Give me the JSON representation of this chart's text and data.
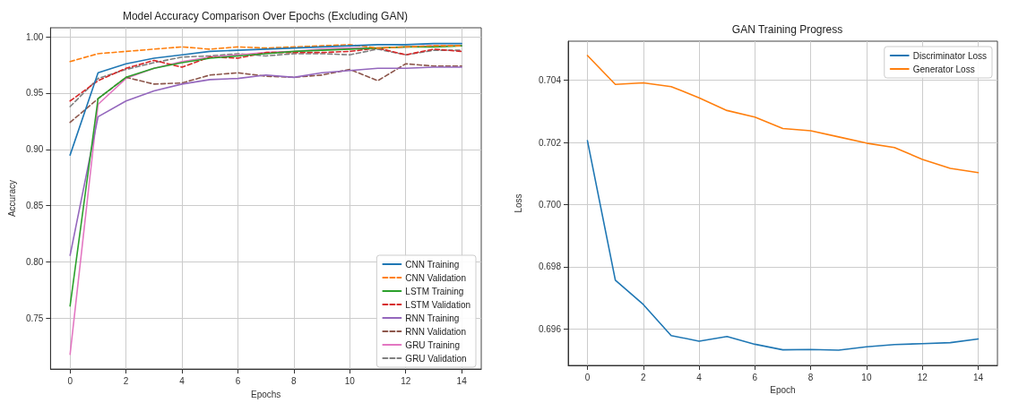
{
  "chart_data": [
    {
      "type": "line",
      "title": "Model Accuracy Comparison Over Epochs (Excluding GAN)",
      "xlabel": "Epochs",
      "ylabel": "Accuracy",
      "x": [
        0,
        1,
        2,
        3,
        4,
        5,
        6,
        7,
        8,
        9,
        10,
        11,
        12,
        13,
        14
      ],
      "xlim": [
        -0.7,
        14.7
      ],
      "xticks": [
        0,
        2,
        4,
        6,
        8,
        10,
        12,
        14
      ],
      "ylim": [
        0.705,
        1.008
      ],
      "yticks": [
        {
          "value": 0.75,
          "label": "0.75"
        },
        {
          "value": 0.8,
          "label": "0.80"
        },
        {
          "value": 0.85,
          "label": "0.85"
        },
        {
          "value": 0.9,
          "label": "0.90"
        },
        {
          "value": 0.95,
          "label": "0.95"
        },
        {
          "value": 1.0,
          "label": "1.00"
        }
      ],
      "grid": true,
      "legend": "bottom right",
      "marker": "none",
      "series": [
        {
          "name": "CNN Training",
          "color": "#1f77b4",
          "line_style": "solid",
          "values": [
            0.895,
            0.968,
            0.976,
            0.981,
            0.984,
            0.987,
            0.988,
            0.989,
            0.99,
            0.991,
            0.992,
            0.993,
            0.993,
            0.994,
            0.994
          ]
        },
        {
          "name": "CNN Validation",
          "color": "#ff7f0e",
          "line_style": "dashed",
          "values": [
            0.978,
            0.985,
            0.987,
            0.989,
            0.991,
            0.989,
            0.991,
            0.99,
            0.991,
            0.992,
            0.993,
            0.99,
            0.991,
            0.992,
            0.992
          ]
        },
        {
          "name": "LSTM Training",
          "color": "#2ca02c",
          "line_style": "solid",
          "values": [
            0.761,
            0.945,
            0.964,
            0.972,
            0.977,
            0.981,
            0.983,
            0.985,
            0.987,
            0.988,
            0.989,
            0.99,
            0.991,
            0.991,
            0.992
          ]
        },
        {
          "name": "LSTM Validation",
          "color": "#d62728",
          "line_style": "dashed",
          "values": [
            0.943,
            0.961,
            0.972,
            0.979,
            0.973,
            0.982,
            0.981,
            0.986,
            0.986,
            0.986,
            0.987,
            0.99,
            0.984,
            0.989,
            0.987
          ]
        },
        {
          "name": "RNN Training",
          "color": "#9467bd",
          "line_style": "solid",
          "values": [
            0.806,
            0.929,
            0.943,
            0.952,
            0.958,
            0.962,
            0.963,
            0.966,
            0.964,
            0.968,
            0.97,
            0.972,
            0.972,
            0.973,
            0.973
          ]
        },
        {
          "name": "RNN Validation",
          "color": "#8c564b",
          "line_style": "dashed",
          "values": [
            0.924,
            0.945,
            0.964,
            0.958,
            0.959,
            0.966,
            0.968,
            0.965,
            0.964,
            0.966,
            0.971,
            0.961,
            0.976,
            0.974,
            0.974
          ]
        },
        {
          "name": "GRU Training",
          "color": "#e377c2",
          "line_style": "solid",
          "values": [
            0.718,
            0.94,
            0.963,
            0.972,
            0.978,
            0.982,
            0.984,
            0.986,
            0.987,
            0.989,
            0.99,
            0.99,
            0.991,
            0.992,
            0.992
          ]
        },
        {
          "name": "GRU Validation",
          "color": "#7f7f7f",
          "line_style": "dashed",
          "values": [
            0.938,
            0.963,
            0.971,
            0.977,
            0.982,
            0.983,
            0.985,
            0.983,
            0.985,
            0.985,
            0.984,
            0.989,
            0.984,
            0.988,
            0.988
          ]
        }
      ]
    },
    {
      "type": "line",
      "title": "GAN Training Progress",
      "xlabel": "Epoch",
      "ylabel": "Loss",
      "x": [
        0,
        1,
        2,
        3,
        4,
        5,
        6,
        7,
        8,
        9,
        10,
        11,
        12,
        13,
        14
      ],
      "xlim": [
        -0.69,
        14.69
      ],
      "xticks": [
        0,
        2,
        4,
        6,
        8,
        10,
        12,
        14
      ],
      "ylim": [
        0.69483,
        0.70526
      ],
      "yticks": [
        {
          "value": 0.696,
          "label": "0.696"
        },
        {
          "value": 0.698,
          "label": "0.698"
        },
        {
          "value": 0.7,
          "label": "0.700"
        },
        {
          "value": 0.702,
          "label": "0.702"
        },
        {
          "value": 0.704,
          "label": "0.704"
        }
      ],
      "grid": true,
      "legend": "top right",
      "marker": "none",
      "series": [
        {
          "name": "Discriminator Loss",
          "color": "#1f77b4",
          "line_style": "solid",
          "values": [
            0.70206,
            0.69757,
            0.69679,
            0.69579,
            0.69561,
            0.69576,
            0.69551,
            0.69533,
            0.69534,
            0.69532,
            0.69543,
            0.6955,
            0.69553,
            0.69556,
            0.69568
          ]
        },
        {
          "name": "Generator Loss",
          "color": "#ff7f0e",
          "line_style": "solid",
          "values": [
            0.7048,
            0.70387,
            0.70392,
            0.7038,
            0.70344,
            0.70303,
            0.70282,
            0.70245,
            0.70238,
            0.70218,
            0.70198,
            0.70184,
            0.70146,
            0.70117,
            0.70103
          ]
        }
      ]
    }
  ]
}
